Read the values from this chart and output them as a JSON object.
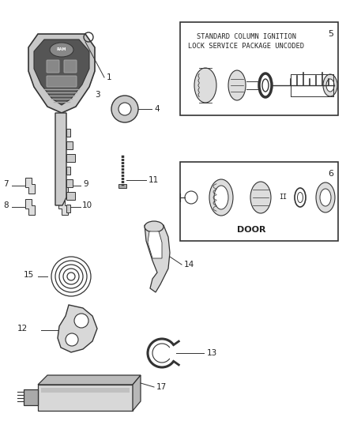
{
  "bg_color": "#ffffff",
  "line_color": "#333333",
  "text_color": "#222222",
  "box1_label_line1": "STANDARD COLUMN IGNITION",
  "box1_label_line2": "LOCK SERVICE PACKAGE UNCODED",
  "box1_num": "5",
  "box2_label": "DOOR",
  "box2_num": "6",
  "label_fontsize": 6.5,
  "part_num_fontsize": 7.5
}
